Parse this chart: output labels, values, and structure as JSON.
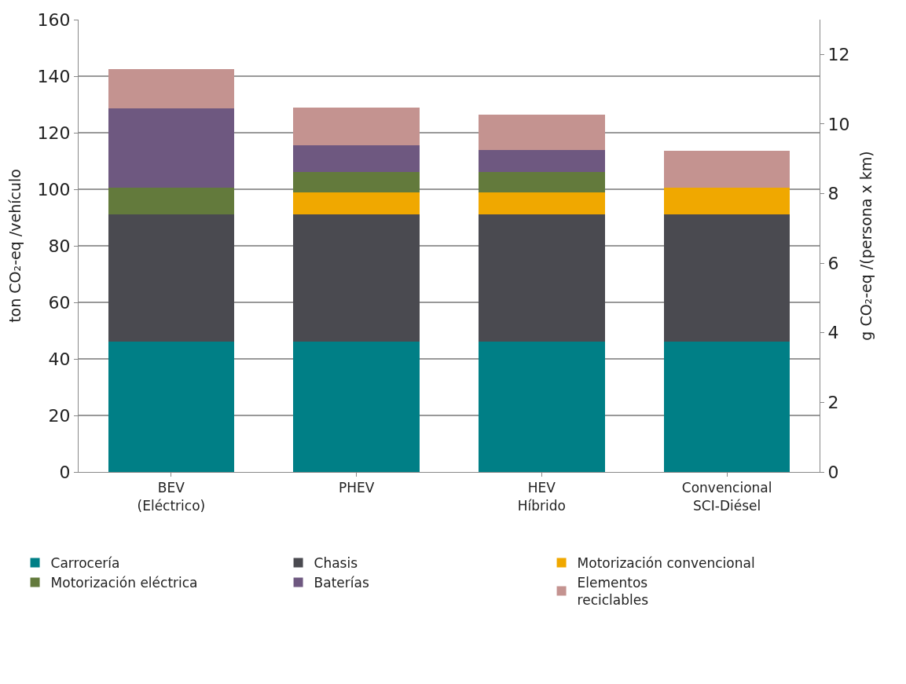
{
  "chart_data": {
    "type": "bar",
    "stacked": true,
    "ylabel": "ton CO₂-eq /vehículo",
    "y2label": "g CO₂-eq /(persona x km)",
    "categories": [
      "BEV\n(Eléctrico)",
      "PHEV",
      "HEV\nHíbrido",
      "Convencional\nSCI-Diésel"
    ],
    "series": [
      {
        "name": "Carrocería",
        "color": "#007f86",
        "values": [
          46,
          46,
          46,
          46
        ]
      },
      {
        "name": "Chasis",
        "color": "#4a4a50",
        "values": [
          45,
          45,
          45,
          45
        ]
      },
      {
        "name": "Motorización convencional",
        "color": "#f0a800",
        "values": [
          null,
          8,
          8,
          9.5
        ]
      },
      {
        "name": "Motorización eléctrica",
        "color": "#637a3c",
        "values": [
          9.5,
          7,
          7,
          null
        ]
      },
      {
        "name": "Baterías",
        "color": "#6e5880",
        "values": [
          28,
          9.5,
          8,
          null
        ]
      },
      {
        "name": "Elementos\nreciclables",
        "color": "#c49390",
        "values": [
          14,
          13.5,
          12.5,
          13
        ]
      }
    ],
    "ylim": [
      0,
      160
    ],
    "yticks": [
      0,
      20,
      40,
      60,
      80,
      100,
      120,
      140,
      160
    ],
    "y2lim": [
      0,
      13
    ],
    "y2ticks": [
      0,
      2,
      4,
      6,
      8,
      10,
      12
    ],
    "grid": "y",
    "legend": "bottom"
  }
}
